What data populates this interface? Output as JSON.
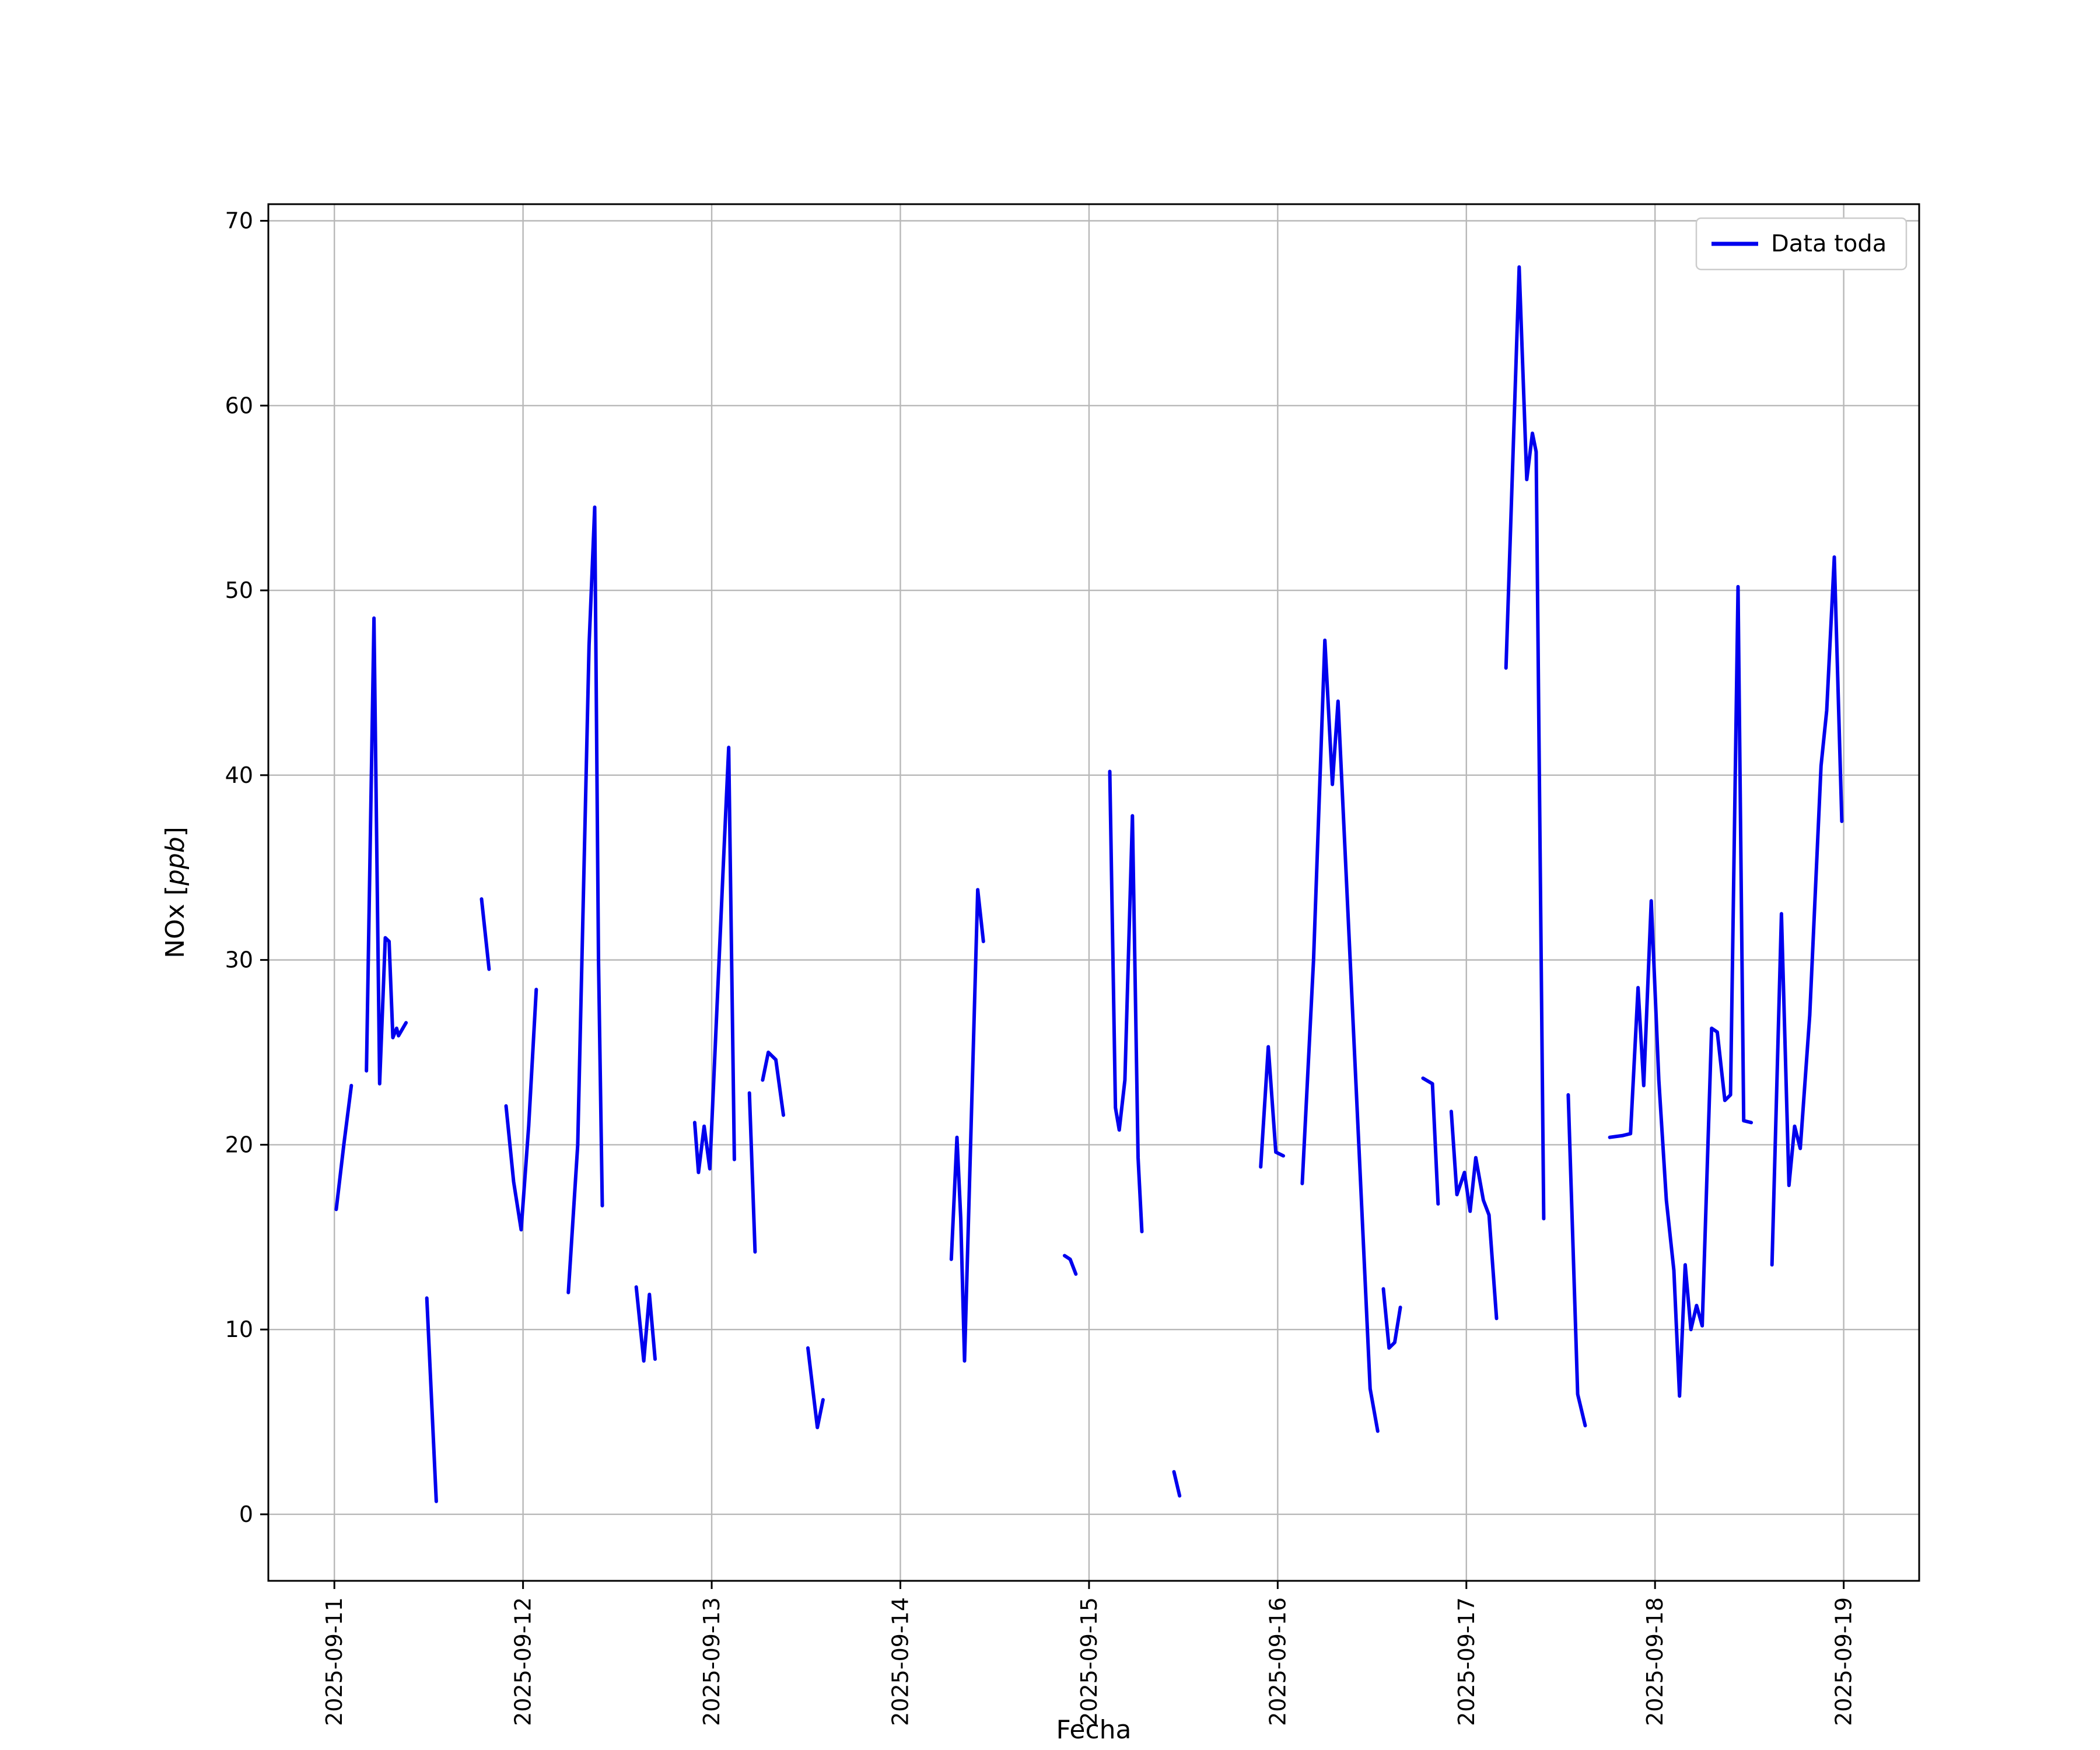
{
  "figure": {
    "background": "#ffffff"
  },
  "chart_data": {
    "type": "line",
    "title": "",
    "xlabel": "Fecha",
    "ylabel": "NOx [ppb]",
    "ylabel_parts": [
      "NOx [",
      "ppb",
      "]"
    ],
    "legend": {
      "label": "Data toda",
      "position": "upper right",
      "border_color": "#cccccc"
    },
    "line_color": "#0000ee",
    "line_width": 6,
    "grid": true,
    "grid_color": "#b8b8b8",
    "frame_color": "#000000",
    "x_unit": "days since 2025-09-11",
    "x_tick_days": [
      0,
      1,
      2,
      3,
      4,
      5,
      6,
      7,
      8
    ],
    "x_tick_labels": [
      "2025-09-11",
      "2025-09-12",
      "2025-09-13",
      "2025-09-14",
      "2025-09-15",
      "2025-09-16",
      "2025-09-17",
      "2025-09-18",
      "2025-09-19"
    ],
    "y_ticks": [
      0,
      10,
      20,
      30,
      40,
      50,
      60,
      70
    ],
    "xlim": [
      -0.35,
      8.4
    ],
    "ylim": [
      -3.6,
      70.9
    ],
    "segments": [
      [
        [
          0.01,
          16.5
        ],
        [
          0.05,
          20.0
        ],
        [
          0.09,
          23.2
        ]
      ],
      [
        [
          0.17,
          24.0
        ],
        [
          0.21,
          48.5
        ],
        [
          0.24,
          23.3
        ],
        [
          0.27,
          31.2
        ],
        [
          0.29,
          31.0
        ],
        [
          0.31,
          25.8
        ],
        [
          0.33,
          26.3
        ],
        [
          0.34,
          25.9
        ],
        [
          0.38,
          26.6
        ]
      ],
      [
        [
          0.49,
          11.7
        ],
        [
          0.54,
          0.7
        ]
      ],
      [
        [
          0.78,
          33.3
        ],
        [
          0.82,
          29.5
        ]
      ],
      [
        [
          0.91,
          22.1
        ],
        [
          0.95,
          18.0
        ],
        [
          0.99,
          15.4
        ],
        [
          1.03,
          21.0
        ],
        [
          1.07,
          28.4
        ]
      ],
      [
        [
          1.24,
          12.0
        ],
        [
          1.29,
          20.0
        ],
        [
          1.35,
          47.0
        ],
        [
          1.38,
          54.5
        ],
        [
          1.4,
          30.0
        ],
        [
          1.42,
          16.7
        ]
      ],
      [
        [
          1.6,
          12.3
        ],
        [
          1.64,
          8.3
        ],
        [
          1.67,
          11.9
        ],
        [
          1.7,
          8.4
        ]
      ],
      [
        [
          1.91,
          21.2
        ],
        [
          1.93,
          18.5
        ],
        [
          1.96,
          21.0
        ],
        [
          1.99,
          18.7
        ],
        [
          2.06,
          34.8
        ],
        [
          2.09,
          41.5
        ],
        [
          2.12,
          19.2
        ]
      ],
      [
        [
          2.2,
          22.8
        ],
        [
          2.23,
          14.2
        ]
      ],
      [
        [
          2.27,
          23.5
        ],
        [
          2.3,
          25.0
        ],
        [
          2.34,
          24.6
        ],
        [
          2.38,
          21.6
        ]
      ],
      [
        [
          2.51,
          9.0
        ],
        [
          2.56,
          4.7
        ],
        [
          2.59,
          6.2
        ]
      ],
      [
        [
          3.27,
          13.8
        ],
        [
          3.3,
          20.4
        ],
        [
          3.32,
          16.0
        ],
        [
          3.34,
          8.3
        ],
        [
          3.41,
          33.8
        ],
        [
          3.44,
          31.0
        ]
      ],
      [
        [
          3.87,
          14.0
        ],
        [
          3.9,
          13.8
        ],
        [
          3.93,
          13.0
        ]
      ],
      [
        [
          4.11,
          40.2
        ],
        [
          4.14,
          22.0
        ],
        [
          4.16,
          20.8
        ],
        [
          4.19,
          23.5
        ],
        [
          4.23,
          37.8
        ],
        [
          4.26,
          19.3
        ],
        [
          4.28,
          15.3
        ]
      ],
      [
        [
          4.45,
          2.3
        ],
        [
          4.48,
          1.0
        ]
      ],
      [
        [
          4.91,
          18.8
        ],
        [
          4.95,
          25.3
        ],
        [
          4.99,
          19.6
        ],
        [
          5.03,
          19.4
        ]
      ],
      [
        [
          5.13,
          17.9
        ],
        [
          5.19,
          30.0
        ],
        [
          5.25,
          47.3
        ],
        [
          5.29,
          39.5
        ],
        [
          5.32,
          44.0
        ],
        [
          5.43,
          20.0
        ],
        [
          5.49,
          6.8
        ],
        [
          5.53,
          4.5
        ]
      ],
      [
        [
          5.56,
          12.2
        ],
        [
          5.59,
          9.0
        ],
        [
          5.62,
          9.3
        ],
        [
          5.65,
          11.2
        ]
      ],
      [
        [
          5.77,
          23.6
        ],
        [
          5.82,
          23.3
        ],
        [
          5.85,
          16.8
        ]
      ],
      [
        [
          5.92,
          21.8
        ],
        [
          5.95,
          17.3
        ],
        [
          5.99,
          18.5
        ],
        [
          6.02,
          16.4
        ],
        [
          6.05,
          19.3
        ],
        [
          6.09,
          17.0
        ],
        [
          6.12,
          16.2
        ],
        [
          6.16,
          10.6
        ]
      ],
      [
        [
          6.21,
          45.8
        ],
        [
          6.28,
          67.5
        ],
        [
          6.32,
          56.0
        ],
        [
          6.35,
          58.5
        ],
        [
          6.37,
          57.5
        ],
        [
          6.41,
          16.0
        ]
      ],
      [
        [
          6.54,
          22.7
        ],
        [
          6.59,
          6.5
        ],
        [
          6.63,
          4.8
        ]
      ],
      [
        [
          6.76,
          20.4
        ],
        [
          6.83,
          20.5
        ],
        [
          6.87,
          20.6
        ],
        [
          6.91,
          28.5
        ],
        [
          6.94,
          23.2
        ],
        [
          6.98,
          33.2
        ],
        [
          7.02,
          23.5
        ],
        [
          7.06,
          17.0
        ],
        [
          7.1,
          13.2
        ],
        [
          7.13,
          6.4
        ],
        [
          7.16,
          13.5
        ],
        [
          7.19,
          10.0
        ],
        [
          7.22,
          11.3
        ],
        [
          7.25,
          10.2
        ],
        [
          7.3,
          26.3
        ],
        [
          7.33,
          26.1
        ],
        [
          7.37,
          22.4
        ],
        [
          7.4,
          22.7
        ],
        [
          7.44,
          50.2
        ],
        [
          7.47,
          21.3
        ],
        [
          7.51,
          21.2
        ]
      ],
      [
        [
          7.62,
          13.5
        ],
        [
          7.67,
          32.5
        ],
        [
          7.71,
          17.8
        ],
        [
          7.74,
          21.0
        ],
        [
          7.77,
          19.8
        ],
        [
          7.82,
          27.0
        ],
        [
          7.88,
          40.5
        ],
        [
          7.91,
          43.5
        ],
        [
          7.95,
          51.8
        ],
        [
          7.99,
          37.5
        ]
      ]
    ]
  }
}
